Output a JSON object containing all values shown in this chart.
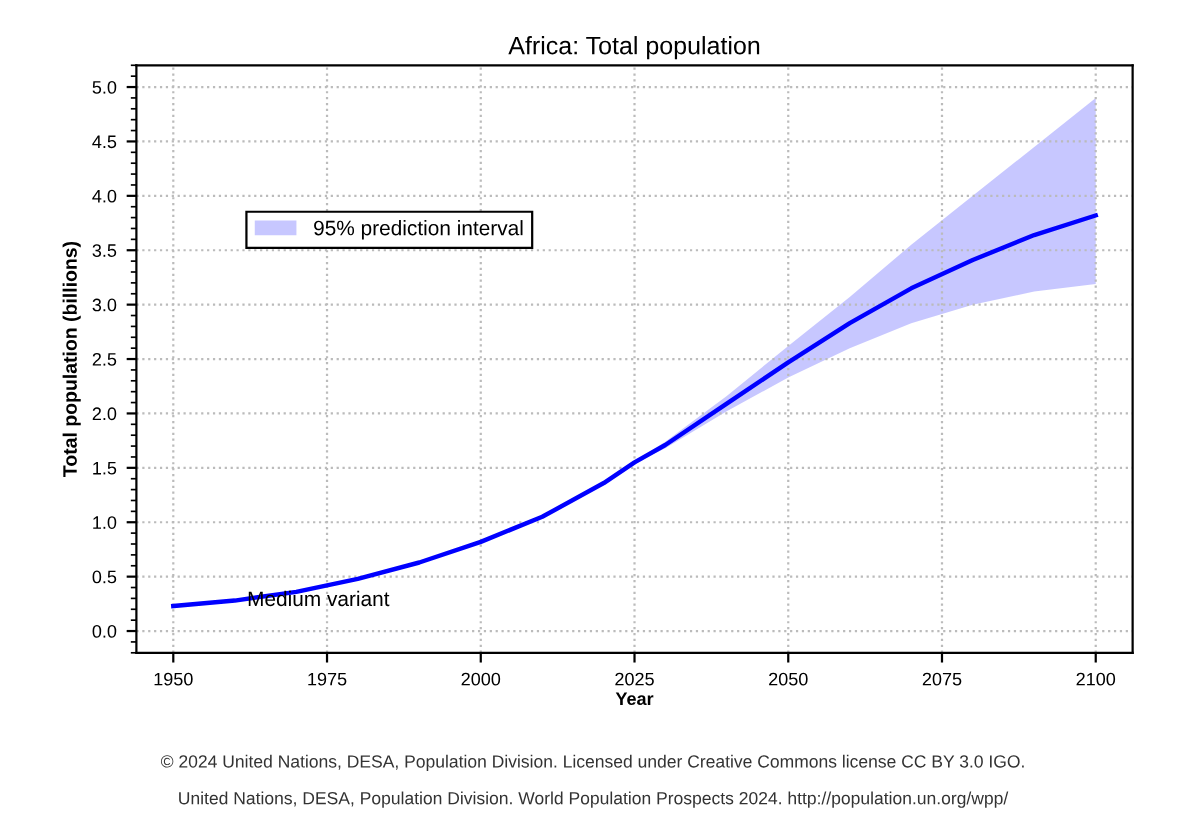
{
  "chart_data": {
    "type": "line",
    "title": "Africa: Total population",
    "xlabel": "Year",
    "ylabel": "Total population (billions)",
    "xlim": [
      1944,
      2106
    ],
    "xticks": [
      1950,
      1975,
      2000,
      2025,
      2050,
      2075,
      2100
    ],
    "ylim": [
      -0.2,
      5.2
    ],
    "yticks": [
      {
        "value": 0,
        "label": "0.0"
      },
      0.5,
      {
        "value": 1,
        "label": "1.0"
      },
      1.5,
      {
        "value": 2,
        "label": "2.0"
      },
      2.5,
      {
        "value": 3,
        "label": "3.0"
      },
      3.5,
      {
        "value": 4,
        "label": "4.0"
      },
      4.5,
      {
        "value": 5,
        "label": "5.0"
      }
    ],
    "grid": true,
    "legend": "top left",
    "line_style": "solid",
    "series": [
      {
        "name": "95% prediction interval",
        "color": "#0000ff",
        "x": [
          1950,
          1960,
          1970,
          1980,
          1990,
          2000,
          2010,
          2020,
          2025,
          2030,
          2040,
          2050,
          2060,
          2070,
          2080,
          2090,
          2100
        ],
        "values": [
          0.23,
          0.28,
          0.36,
          0.48,
          0.63,
          0.82,
          1.05,
          1.36,
          1.55,
          1.71,
          2.09,
          2.47,
          2.83,
          3.15,
          3.41,
          3.64,
          3.82
        ],
        "lower": [
          null,
          null,
          null,
          null,
          null,
          null,
          null,
          null,
          1.54,
          1.68,
          2.02,
          2.33,
          2.6,
          2.83,
          3.0,
          3.12,
          3.19
        ],
        "upper": [
          null,
          null,
          null,
          null,
          null,
          null,
          null,
          null,
          1.56,
          1.74,
          2.16,
          2.62,
          3.07,
          3.55,
          4.0,
          4.45,
          4.9
        ]
      }
    ],
    "annotations": [
      {
        "text": "Medium variant",
        "x": 1962,
        "y": 0.28
      },
      "© 2024 United Nations, DESA, Population Division. Licensed under Creative Commons license CC BY 3.0 IGO.",
      "United Nations, DESA, Population Division. World Population Prospects 2024. http://population.un.org/wpp/"
    ]
  }
}
